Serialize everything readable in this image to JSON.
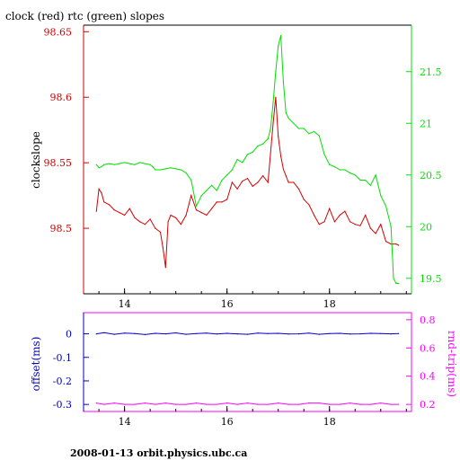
{
  "title": "clock (red) rtc (green) slopes",
  "footer": "2008-01-13  orbit.physics.ubc.ca",
  "colors": {
    "clock": "#d40000",
    "rtc": "#00e000",
    "offset": "#0000c8",
    "roundtrip": "#ff00ff",
    "axis_black": "#000000"
  },
  "chart_data": [
    {
      "type": "line",
      "title": "clock (red) rtc (green) slopes",
      "ylabel": "clockslope",
      "x_ticks": [
        14,
        16,
        18
      ],
      "xlim": [
        13.2,
        19.6
      ],
      "ylim_left": [
        98.45,
        98.655
      ],
      "left_ticks": [
        "98.5",
        "98.55",
        "98.6",
        "98.65"
      ],
      "ylim_right": [
        19.35,
        21.95
      ],
      "right_ticks": [
        "19.5",
        "20",
        "20.5",
        "21",
        "21.5"
      ],
      "grid": false,
      "series": [
        {
          "color_key": "clock",
          "axis": "left",
          "x": [
            13.45,
            13.5,
            13.55,
            13.6,
            13.7,
            13.8,
            13.9,
            14.0,
            14.1,
            14.2,
            14.3,
            14.4,
            14.5,
            14.6,
            14.7,
            14.75,
            14.8,
            14.85,
            14.9,
            15.0,
            15.1,
            15.2,
            15.3,
            15.4,
            15.5,
            15.6,
            15.7,
            15.8,
            15.9,
            16.0,
            16.1,
            16.2,
            16.3,
            16.4,
            16.5,
            16.6,
            16.7,
            16.8,
            16.9,
            16.95,
            17.0,
            17.05,
            17.1,
            17.15,
            17.2,
            17.3,
            17.4,
            17.5,
            17.6,
            17.7,
            17.8,
            17.9,
            18.0,
            18.1,
            18.2,
            18.3,
            18.4,
            18.5,
            18.6,
            18.7,
            18.8,
            18.9,
            19.0,
            19.1,
            19.2,
            19.3,
            19.35
          ],
          "y": [
            98.513,
            98.53,
            98.527,
            98.52,
            98.518,
            98.514,
            98.512,
            98.51,
            98.515,
            98.508,
            98.505,
            98.503,
            98.507,
            98.5,
            98.497,
            98.485,
            98.47,
            98.505,
            98.51,
            98.508,
            98.503,
            98.51,
            98.525,
            98.514,
            98.512,
            98.51,
            98.515,
            98.52,
            98.52,
            98.522,
            98.535,
            98.53,
            98.536,
            98.538,
            98.532,
            98.535,
            98.54,
            98.535,
            98.58,
            98.6,
            98.57,
            98.555,
            98.545,
            98.54,
            98.535,
            98.535,
            98.53,
            98.522,
            98.518,
            98.51,
            98.503,
            98.505,
            98.515,
            98.505,
            98.51,
            98.513,
            98.505,
            98.503,
            98.502,
            98.51,
            98.5,
            98.496,
            98.503,
            98.49,
            98.488,
            98.488,
            98.487
          ]
        },
        {
          "color_key": "rtc",
          "axis": "right",
          "x": [
            13.45,
            13.5,
            13.55,
            13.6,
            13.7,
            13.8,
            13.9,
            14.0,
            14.1,
            14.2,
            14.3,
            14.4,
            14.5,
            14.55,
            14.6,
            14.7,
            14.8,
            14.9,
            15.0,
            15.1,
            15.2,
            15.3,
            15.4,
            15.5,
            15.6,
            15.7,
            15.8,
            15.9,
            16.0,
            16.1,
            16.2,
            16.3,
            16.4,
            16.5,
            16.6,
            16.7,
            16.8,
            16.85,
            16.9,
            16.95,
            17.0,
            17.05,
            17.1,
            17.15,
            17.2,
            17.3,
            17.4,
            17.5,
            17.6,
            17.7,
            17.8,
            17.9,
            18.0,
            18.1,
            18.2,
            18.3,
            18.4,
            18.5,
            18.6,
            18.7,
            18.8,
            18.9,
            19.0,
            19.1,
            19.2,
            19.25,
            19.3,
            19.35
          ],
          "y": [
            20.6,
            20.57,
            20.58,
            20.6,
            20.61,
            20.6,
            20.61,
            20.62,
            20.61,
            20.6,
            20.62,
            20.61,
            20.6,
            20.58,
            20.55,
            20.55,
            20.56,
            20.57,
            20.56,
            20.55,
            20.52,
            20.45,
            20.2,
            20.3,
            20.35,
            20.4,
            20.35,
            20.45,
            20.5,
            20.55,
            20.65,
            20.62,
            20.7,
            20.72,
            20.78,
            20.8,
            20.85,
            20.95,
            21.2,
            21.5,
            21.75,
            21.85,
            21.4,
            21.1,
            21.05,
            21.0,
            20.95,
            20.95,
            20.9,
            20.92,
            20.88,
            20.7,
            20.6,
            20.58,
            20.55,
            20.55,
            20.52,
            20.5,
            20.45,
            20.45,
            20.4,
            20.5,
            20.3,
            20.2,
            20.0,
            19.5,
            19.45,
            19.45
          ]
        }
      ]
    },
    {
      "type": "line",
      "ylabel_left": "offset(ms)",
      "ylabel_right": "rnd-trip(ms)",
      "x_ticks": [
        14,
        16,
        18
      ],
      "xlim": [
        13.2,
        19.6
      ],
      "ylim_left": [
        -0.33,
        0.09
      ],
      "left_ticks": [
        "0",
        "-0.1",
        "-0.2",
        "-0.3"
      ],
      "ylim_right": [
        0.15,
        0.85
      ],
      "right_ticks": [
        "0.2",
        "0.4",
        "0.6",
        "0.8"
      ],
      "grid": false,
      "series": [
        {
          "color_key": "offset",
          "axis": "left",
          "x": [
            13.45,
            13.6,
            13.8,
            14.0,
            14.2,
            14.4,
            14.6,
            14.8,
            15.0,
            15.2,
            15.4,
            15.6,
            15.8,
            16.0,
            16.2,
            16.4,
            16.6,
            16.8,
            17.0,
            17.2,
            17.4,
            17.6,
            17.8,
            18.0,
            18.2,
            18.4,
            18.6,
            18.8,
            19.0,
            19.2,
            19.35
          ],
          "y": [
            0.0,
            0.005,
            -0.002,
            0.003,
            0.001,
            -0.003,
            0.002,
            0.0,
            0.004,
            -0.002,
            0.001,
            0.003,
            -0.001,
            0.002,
            0.0,
            -0.002,
            0.003,
            0.001,
            0.002,
            -0.001,
            0.0,
            0.003,
            -0.002,
            0.001,
            0.002,
            -0.001,
            0.0,
            0.002,
            0.001,
            0.0,
            0.001
          ]
        },
        {
          "color_key": "roundtrip",
          "axis": "right",
          "x": [
            13.45,
            13.6,
            13.8,
            14.0,
            14.2,
            14.4,
            14.6,
            14.8,
            15.0,
            15.2,
            15.4,
            15.6,
            15.8,
            16.0,
            16.2,
            16.4,
            16.6,
            16.8,
            17.0,
            17.2,
            17.4,
            17.6,
            17.8,
            18.0,
            18.2,
            18.4,
            18.6,
            18.8,
            19.0,
            19.2,
            19.35
          ],
          "y": [
            0.21,
            0.2,
            0.21,
            0.2,
            0.2,
            0.21,
            0.2,
            0.21,
            0.2,
            0.2,
            0.21,
            0.2,
            0.2,
            0.21,
            0.2,
            0.21,
            0.2,
            0.2,
            0.21,
            0.2,
            0.2,
            0.21,
            0.21,
            0.2,
            0.2,
            0.21,
            0.2,
            0.2,
            0.21,
            0.2,
            0.2
          ]
        }
      ]
    }
  ]
}
